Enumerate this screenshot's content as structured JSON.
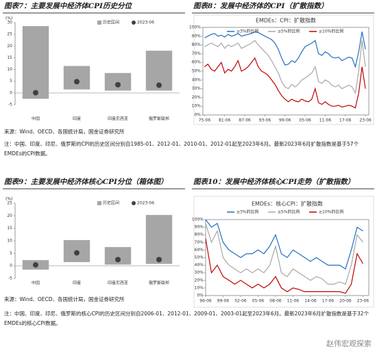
{
  "footnotes": [
    {
      "source": "来源：Wind、OECD、各国统计局，国金证券研究所",
      "note": "注：中国、印度、印尼、俄罗斯的CPI的历史区间分别自1985-01、2012-01、2010-01、2012-01起至2023年6月。最新2023年6月扩散指数是基于57个EMDEs的CPI数据。"
    },
    {
      "source": "来源：Wind、OECD、各国统计局，国金证券研究所",
      "note": "注：中国、印度、印尼、俄罗斯的核心CPI的历史区间分别自2006-01、2012-01、2009-01、2003-01起至2023年6月。最新2023年6月扩散指数是基于32个EMDEs的核心CPI数据。"
    }
  ],
  "watermark": "赵伟宏观探索",
  "chart_data": [
    {
      "type": "range",
      "title": "图表7：主要发展中经济体CPI历史分位",
      "y_label": "(%)",
      "categories": [
        "中国",
        "印度",
        "印度尼西亚",
        "俄罗斯联邦"
      ],
      "series": [
        {
          "name": "历史区间",
          "color": "#a6a6a6",
          "low": [
            -2.5,
            1.5,
            1,
            1
          ],
          "high": [
            28.5,
            11.5,
            8.5,
            18
          ]
        },
        {
          "name": "2023-06",
          "color": "#404040",
          "values": [
            0.1,
            4.8,
            3.5,
            3.3
          ]
        }
      ],
      "ylim": [
        -5,
        30
      ],
      "yticks": [
        -5,
        0,
        5,
        10,
        15,
        20,
        25,
        30
      ]
    },
    {
      "type": "line",
      "title": "图表8：发展中经济体的CPI（扩散指数）",
      "subtitle": "EMDEs：CPI：扩散指数",
      "x": [
        1975,
        1976,
        1977,
        1978,
        1979,
        1980,
        1981,
        1982,
        1983,
        1984,
        1985,
        1986,
        1987,
        1988,
        1989,
        1990,
        1991,
        1992,
        1993,
        1994,
        1995,
        1996,
        1997,
        1998,
        1999,
        2000,
        2001,
        2002,
        2003,
        2004,
        2005,
        2006,
        2007,
        2008,
        2009,
        2010,
        2011,
        2012,
        2013,
        2014,
        2015,
        2016,
        2017,
        2018,
        2019,
        2020,
        2021,
        2022,
        2023
      ],
      "series": [
        {
          "name": "≥3%的比例",
          "color": "#1f6fbf",
          "values": [
            88,
            90,
            92,
            93,
            90,
            91,
            89,
            92,
            90,
            91,
            93,
            90,
            91,
            92,
            93,
            95,
            94,
            92,
            90,
            88,
            86,
            82,
            75,
            65,
            57,
            58,
            62,
            60,
            65,
            72,
            78,
            80,
            82,
            85,
            70,
            68,
            72,
            70,
            66,
            65,
            66,
            62,
            64,
            66,
            65,
            55,
            72,
            95,
            75
          ]
        },
        {
          "name": "≥5%的比例",
          "color": "#a6a6a6",
          "values": [
            78,
            80,
            82,
            80,
            78,
            82,
            76,
            80,
            78,
            80,
            82,
            76,
            78,
            80,
            82,
            85,
            80,
            76,
            72,
            68,
            62,
            55,
            48,
            38,
            32,
            30,
            35,
            32,
            35,
            40,
            42,
            45,
            48,
            55,
            38,
            36,
            40,
            38,
            34,
            32,
            34,
            30,
            32,
            34,
            32,
            25,
            50,
            85,
            55
          ]
        },
        {
          "name": "≥10%的比例",
          "color": "#c00000",
          "values": [
            55,
            58,
            52,
            50,
            55,
            60,
            48,
            52,
            50,
            55,
            62,
            50,
            52,
            55,
            60,
            65,
            55,
            50,
            48,
            45,
            40,
            35,
            28,
            22,
            18,
            15,
            18,
            16,
            15,
            18,
            16,
            15,
            18,
            30,
            14,
            12,
            15,
            12,
            10,
            10,
            11,
            9,
            10,
            11,
            10,
            8,
            25,
            55,
            30
          ]
        }
      ],
      "xlim": [
        1974.5,
        2024
      ],
      "xticks": [
        {
          "value": 1975,
          "label": "75-06"
        },
        {
          "value": 1981,
          "label": "81-06"
        },
        {
          "value": 1987,
          "label": "87-06"
        },
        {
          "value": 1993,
          "label": "93-06"
        },
        {
          "value": 1999,
          "label": "99-06"
        },
        {
          "value": 2005,
          "label": "05-06"
        },
        {
          "value": 2011,
          "label": "11-06"
        },
        {
          "value": 2017,
          "label": "17-06"
        },
        {
          "value": 2023,
          "label": "23-06"
        }
      ],
      "ylim": [
        0,
        100
      ],
      "yticks": [
        {
          "value": 0,
          "label": "0%"
        },
        {
          "value": 10,
          "label": "10%"
        },
        {
          "value": 20,
          "label": "20%"
        },
        {
          "value": 30,
          "label": "30%"
        },
        {
          "value": 40,
          "label": "40%"
        },
        {
          "value": 50,
          "label": "50%"
        },
        {
          "value": 60,
          "label": "60%"
        },
        {
          "value": 70,
          "label": "70%"
        },
        {
          "value": 80,
          "label": "80%"
        },
        {
          "value": 90,
          "label": "90%"
        },
        {
          "value": 100,
          "label": "100%"
        }
      ]
    },
    {
      "type": "range",
      "title": "图表9：主要发展中经济体核心CPI分位（箱体图）",
      "y_label": "(%)",
      "categories": [
        "中国",
        "印度",
        "印度尼西亚",
        "俄罗斯联邦"
      ],
      "series": [
        {
          "name": "历史区间",
          "color": "#a6a6a6",
          "low": [
            -1.5,
            1.5,
            0.5,
            0.8
          ],
          "high": [
            2.3,
            10.3,
            7.5,
            20.3
          ]
        },
        {
          "name": "2023-06",
          "color": "#404040",
          "values": [
            0.4,
            5.2,
            2.5,
            2.5
          ]
        }
      ],
      "ylim": [
        -5,
        25
      ],
      "yticks": [
        -5,
        0,
        5,
        10,
        15,
        20,
        25
      ]
    },
    {
      "type": "line",
      "title": "图表10：发展中经济体核心CPI走势（扩散指数）",
      "subtitle": "EMDEs：核心CPI：扩散指数",
      "x": [
        1996,
        1997,
        1998,
        1999,
        2000,
        2001,
        2002,
        2003,
        2004,
        2005,
        2006,
        2007,
        2008,
        2009,
        2010,
        2011,
        2012,
        2013,
        2014,
        2015,
        2016,
        2017,
        2018,
        2019,
        2020,
        2021,
        2022,
        2023
      ],
      "series": [
        {
          "name": "≥3%的比例",
          "color": "#1f6fbf",
          "values": [
            100,
            90,
            95,
            70,
            60,
            55,
            50,
            55,
            55,
            60,
            55,
            65,
            80,
            55,
            50,
            60,
            55,
            50,
            45,
            50,
            45,
            40,
            40,
            40,
            35,
            60,
            90,
            85
          ]
        },
        {
          "name": "≥5%的比例",
          "color": "#a6a6a6",
          "values": [
            95,
            70,
            85,
            50,
            40,
            35,
            30,
            35,
            30,
            35,
            30,
            40,
            65,
            30,
            25,
            35,
            30,
            25,
            20,
            25,
            22,
            15,
            15,
            18,
            15,
            40,
            80,
            70
          ]
        },
        {
          "name": "≥10%的比例",
          "color": "#c00000",
          "values": [
            75,
            30,
            40,
            25,
            20,
            15,
            20,
            15,
            10,
            15,
            10,
            15,
            25,
            10,
            5,
            10,
            8,
            5,
            5,
            5,
            5,
            5,
            5,
            5,
            3,
            15,
            55,
            42
          ]
        }
      ],
      "xlim": [
        1996,
        2024
      ],
      "xticks": [
        {
          "value": 1996,
          "label": "96-06"
        },
        {
          "value": 1999,
          "label": "99-06"
        },
        {
          "value": 2002,
          "label": "02-06"
        },
        {
          "value": 2005,
          "label": "05-06"
        },
        {
          "value": 2008,
          "label": "08-06"
        },
        {
          "value": 2011,
          "label": "11-06"
        },
        {
          "value": 2014,
          "label": "14-06"
        },
        {
          "value": 2017,
          "label": "17-06"
        },
        {
          "value": 2020,
          "label": "20-06"
        },
        {
          "value": 2023,
          "label": "23-06"
        }
      ],
      "ylim": [
        0,
        100
      ],
      "yticks": [
        {
          "value": 0,
          "label": "0%"
        },
        {
          "value": 10,
          "label": "10%"
        },
        {
          "value": 20,
          "label": "20%"
        },
        {
          "value": 30,
          "label": "30%"
        },
        {
          "value": 40,
          "label": "40%"
        },
        {
          "value": 50,
          "label": "50%"
        },
        {
          "value": 60,
          "label": "60%"
        },
        {
          "value": 70,
          "label": "70%"
        },
        {
          "value": 80,
          "label": "80%"
        },
        {
          "value": 90,
          "label": "90%"
        },
        {
          "value": 100,
          "label": "100%"
        }
      ]
    }
  ]
}
